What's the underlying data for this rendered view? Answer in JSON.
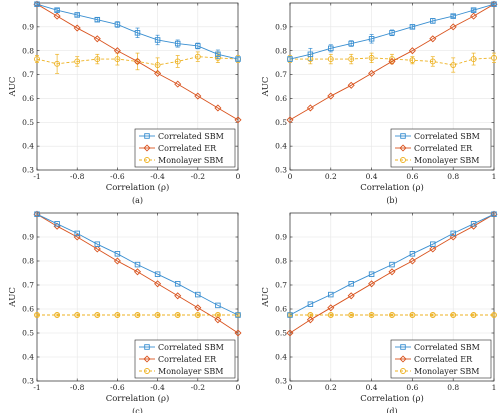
{
  "chart_data": [
    {
      "type": "line",
      "caption": "(a)",
      "xlabel": "Correlation (ρ)",
      "ylabel": "AUC",
      "xlim": [
        -1,
        0
      ],
      "ylim": [
        0.3,
        1.0
      ],
      "xticks": [
        -1,
        -0.8,
        -0.6,
        -0.4,
        -0.2,
        0
      ],
      "yticks": [
        0.3,
        0.4,
        0.5,
        0.6,
        0.7,
        0.8,
        0.9
      ],
      "legend_position": "bottom-right",
      "x": [
        -1,
        -0.9,
        -0.8,
        -0.7,
        -0.6,
        -0.5,
        -0.4,
        -0.3,
        -0.2,
        -0.1,
        0
      ],
      "series": [
        {
          "name": "Correlated SBM",
          "color": "#3a8fd1",
          "marker": "square",
          "values": [
            0.995,
            0.97,
            0.95,
            0.93,
            0.91,
            0.875,
            0.845,
            0.83,
            0.82,
            0.785,
            0.765
          ],
          "errors": [
            0.004,
            0.006,
            0.008,
            0.008,
            0.012,
            0.02,
            0.02,
            0.015,
            0.012,
            0.018,
            0.008
          ]
        },
        {
          "name": "Correlated ER",
          "color": "#d9531e",
          "marker": "diamond",
          "values": [
            0.995,
            0.945,
            0.895,
            0.85,
            0.8,
            0.755,
            0.705,
            0.66,
            0.61,
            0.56,
            0.51
          ],
          "errors": [
            0,
            0,
            0,
            0,
            0,
            0,
            0,
            0,
            0,
            0,
            0
          ]
        },
        {
          "name": "Monolayer SBM",
          "color": "#edb120",
          "marker": "circle",
          "values": [
            0.765,
            0.745,
            0.755,
            0.765,
            0.765,
            0.755,
            0.74,
            0.755,
            0.775,
            0.77,
            0.765
          ],
          "errors": [
            0.015,
            0.04,
            0.02,
            0.02,
            0.025,
            0.035,
            0.03,
            0.025,
            0.02,
            0.02,
            0.015
          ]
        }
      ]
    },
    {
      "type": "line",
      "caption": "(b)",
      "xlabel": "Correlation (ρ)",
      "ylabel": "AUC",
      "xlim": [
        0,
        1
      ],
      "ylim": [
        0.3,
        1.0
      ],
      "xticks": [
        0,
        0.2,
        0.4,
        0.6,
        0.8,
        1
      ],
      "yticks": [
        0.3,
        0.4,
        0.5,
        0.6,
        0.7,
        0.8,
        0.9
      ],
      "legend_position": "bottom-right",
      "x": [
        0,
        0.1,
        0.2,
        0.3,
        0.4,
        0.5,
        0.6,
        0.7,
        0.8,
        0.9,
        1
      ],
      "series": [
        {
          "name": "Correlated SBM",
          "color": "#3a8fd1",
          "marker": "square",
          "values": [
            0.765,
            0.785,
            0.81,
            0.83,
            0.85,
            0.875,
            0.9,
            0.925,
            0.945,
            0.97,
            0.995
          ],
          "errors": [
            0.01,
            0.025,
            0.015,
            0.012,
            0.018,
            0.012,
            0.008,
            0.01,
            0.006,
            0.005,
            0.003
          ]
        },
        {
          "name": "Correlated ER",
          "color": "#d9531e",
          "marker": "diamond",
          "values": [
            0.51,
            0.56,
            0.61,
            0.655,
            0.705,
            0.755,
            0.8,
            0.85,
            0.9,
            0.945,
            0.995
          ],
          "errors": [
            0,
            0,
            0,
            0,
            0,
            0,
            0,
            0,
            0,
            0,
            0
          ]
        },
        {
          "name": "Monolayer SBM",
          "color": "#edb120",
          "marker": "circle",
          "values": [
            0.765,
            0.765,
            0.765,
            0.765,
            0.77,
            0.765,
            0.76,
            0.755,
            0.74,
            0.765,
            0.77
          ],
          "errors": [
            0.015,
            0.02,
            0.02,
            0.02,
            0.02,
            0.02,
            0.015,
            0.02,
            0.03,
            0.025,
            0.02
          ]
        }
      ]
    },
    {
      "type": "line",
      "caption": "(c)",
      "xlabel": "Correlation (ρ)",
      "ylabel": "AUC",
      "xlim": [
        -1,
        0
      ],
      "ylim": [
        0.3,
        1.0
      ],
      "xticks": [
        -1,
        -0.8,
        -0.6,
        -0.4,
        -0.2,
        0
      ],
      "yticks": [
        0.3,
        0.4,
        0.5,
        0.6,
        0.7,
        0.8,
        0.9
      ],
      "legend_position": "bottom-right",
      "x": [
        -1,
        -0.9,
        -0.8,
        -0.7,
        -0.6,
        -0.5,
        -0.4,
        -0.3,
        -0.2,
        -0.1,
        0
      ],
      "series": [
        {
          "name": "Correlated SBM",
          "color": "#3a8fd1",
          "marker": "square",
          "values": [
            0.995,
            0.955,
            0.915,
            0.87,
            0.83,
            0.785,
            0.745,
            0.705,
            0.66,
            0.615,
            0.575
          ],
          "errors": [
            0,
            0,
            0,
            0,
            0,
            0,
            0,
            0,
            0,
            0,
            0
          ]
        },
        {
          "name": "Correlated ER",
          "color": "#d9531e",
          "marker": "diamond",
          "values": [
            0.995,
            0.945,
            0.9,
            0.85,
            0.8,
            0.755,
            0.705,
            0.655,
            0.605,
            0.555,
            0.5
          ],
          "errors": [
            0,
            0,
            0,
            0,
            0,
            0,
            0,
            0,
            0,
            0,
            0
          ]
        },
        {
          "name": "Monolayer SBM",
          "color": "#edb120",
          "marker": "circle",
          "values": [
            0.575,
            0.575,
            0.575,
            0.575,
            0.575,
            0.575,
            0.575,
            0.575,
            0.575,
            0.575,
            0.575
          ],
          "errors": [
            0.004,
            0.004,
            0.004,
            0.004,
            0.004,
            0.004,
            0.004,
            0.004,
            0.004,
            0.004,
            0.004
          ]
        }
      ]
    },
    {
      "type": "line",
      "caption": "(d)",
      "xlabel": "Correlation (ρ)",
      "ylabel": "AUC",
      "xlim": [
        0,
        1
      ],
      "ylim": [
        0.3,
        1.0
      ],
      "xticks": [
        0,
        0.2,
        0.4,
        0.6,
        0.8,
        1
      ],
      "yticks": [
        0.3,
        0.4,
        0.5,
        0.6,
        0.7,
        0.8,
        0.9
      ],
      "legend_position": "bottom-right",
      "x": [
        0,
        0.1,
        0.2,
        0.3,
        0.4,
        0.5,
        0.6,
        0.7,
        0.8,
        0.9,
        1
      ],
      "series": [
        {
          "name": "Correlated SBM",
          "color": "#3a8fd1",
          "marker": "square",
          "values": [
            0.575,
            0.62,
            0.66,
            0.705,
            0.745,
            0.785,
            0.83,
            0.87,
            0.915,
            0.955,
            0.995
          ],
          "errors": [
            0,
            0,
            0,
            0,
            0,
            0,
            0,
            0,
            0,
            0,
            0
          ]
        },
        {
          "name": "Correlated ER",
          "color": "#d9531e",
          "marker": "diamond",
          "values": [
            0.5,
            0.555,
            0.605,
            0.655,
            0.705,
            0.755,
            0.8,
            0.85,
            0.9,
            0.945,
            0.995
          ],
          "errors": [
            0,
            0,
            0,
            0,
            0,
            0,
            0,
            0,
            0,
            0,
            0
          ]
        },
        {
          "name": "Monolayer SBM",
          "color": "#edb120",
          "marker": "circle",
          "values": [
            0.575,
            0.575,
            0.575,
            0.575,
            0.575,
            0.575,
            0.575,
            0.575,
            0.575,
            0.575,
            0.575
          ],
          "errors": [
            0.004,
            0.004,
            0.004,
            0.004,
            0.004,
            0.004,
            0.004,
            0.004,
            0.004,
            0.004,
            0.004
          ]
        }
      ]
    }
  ]
}
